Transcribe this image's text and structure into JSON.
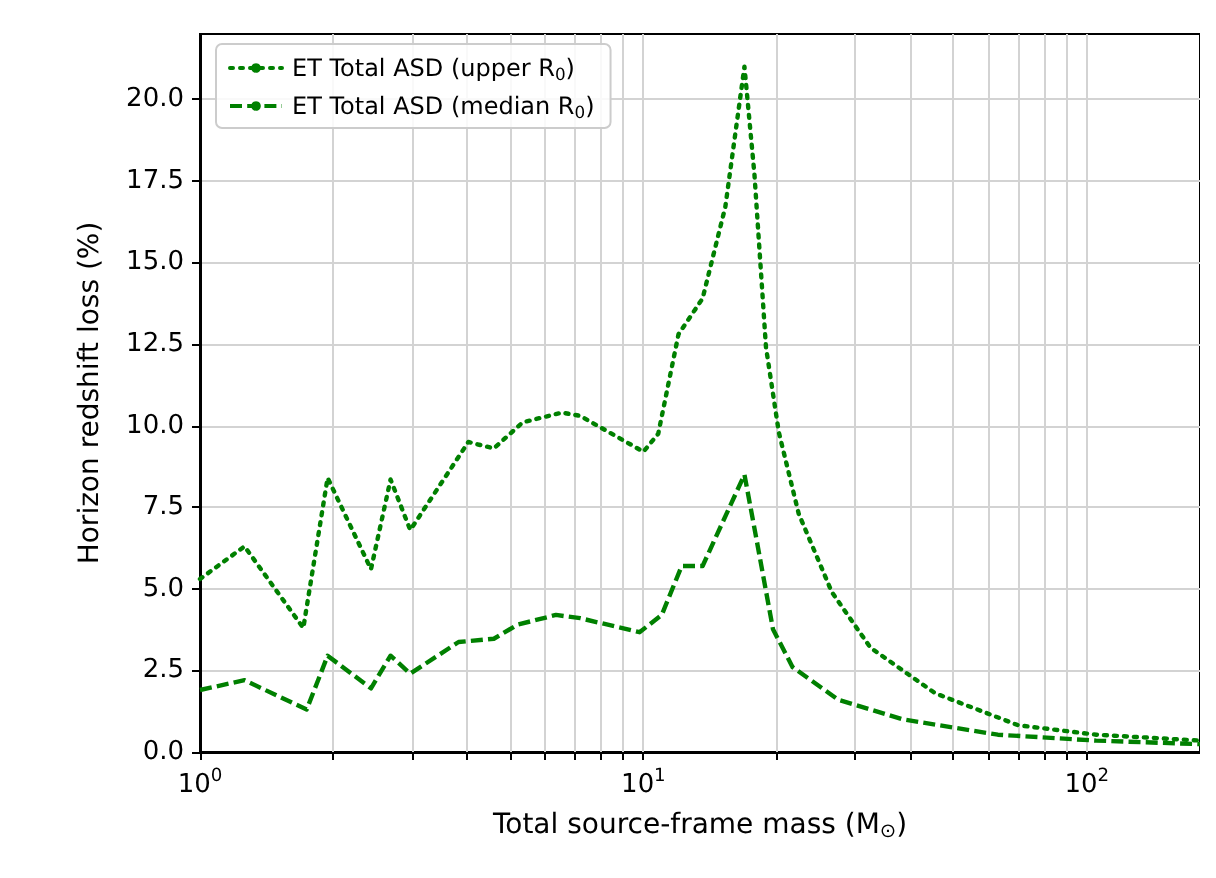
{
  "chart_data": {
    "type": "line",
    "xlabel": "Total source-frame mass (M$_{⊙}$)",
    "ylabel": "Horizon redshift loss (%)",
    "log": "x",
    "grid": true,
    "legend": "top left",
    "xlim": [
      1,
      180
    ],
    "xticks": [
      {
        "value": 1,
        "label": "10$^{0}$"
      },
      {
        "value": 2,
        "label": null
      },
      {
        "value": 3,
        "label": null
      },
      {
        "value": 4,
        "label": null
      },
      {
        "value": 5,
        "label": null
      },
      {
        "value": 6,
        "label": null
      },
      {
        "value": 7,
        "label": null
      },
      {
        "value": 8,
        "label": null
      },
      {
        "value": 9,
        "label": null
      },
      {
        "value": 10,
        "label": "10$^{1}$"
      },
      {
        "value": 20,
        "label": null
      },
      {
        "value": 30,
        "label": null
      },
      {
        "value": 40,
        "label": null
      },
      {
        "value": 50,
        "label": null
      },
      {
        "value": 60,
        "label": null
      },
      {
        "value": 70,
        "label": null
      },
      {
        "value": 80,
        "label": null
      },
      {
        "value": 90,
        "label": null
      },
      {
        "value": 100,
        "label": "10$^{2}$"
      }
    ],
    "ylim": [
      0,
      22
    ],
    "yticks": [
      {
        "value": 0,
        "label": "0.0"
      },
      {
        "value": 2.5,
        "label": "2.5"
      },
      {
        "value": 5,
        "label": "5.0"
      },
      {
        "value": 7.5,
        "label": "7.5"
      },
      {
        "value": 10,
        "label": "10.0"
      },
      {
        "value": 12.5,
        "label": "12.5"
      },
      {
        "value": 15,
        "label": "15.0"
      },
      {
        "value": 17.5,
        "label": "17.5"
      },
      {
        "value": 20,
        "label": "20.0"
      }
    ],
    "series": [
      {
        "name": "ET Total ASD (upper R$_{0}$)",
        "color": "#008000",
        "line_style": "dotted",
        "x": [
          1,
          1.26,
          1.71,
          1.94,
          2.43,
          2.69,
          2.98,
          4.03,
          4.6,
          5.34,
          6.55,
          7.2,
          10,
          10.8,
          12,
          13.6,
          15.3,
          16.9,
          17.8,
          18.9,
          20.2,
          22.4,
          26.6,
          32.5,
          45.5,
          70,
          105,
          180
        ],
        "values": [
          5.3,
          6.3,
          3.8,
          8.4,
          5.6,
          8.35,
          6.8,
          9.5,
          9.3,
          10.1,
          10.4,
          10.3,
          9.2,
          9.75,
          12.8,
          13.9,
          16.7,
          21.0,
          17.7,
          12.4,
          9.8,
          7.3,
          4.9,
          3.2,
          1.8,
          0.82,
          0.53,
          0.35
        ]
      },
      {
        "name": "ET Total ASD (median R$_{0}$)",
        "color": "#008000",
        "line_style": "dashed",
        "x": [
          1,
          1.26,
          1.74,
          1.94,
          2.43,
          2.69,
          2.98,
          3.83,
          4.6,
          5.2,
          6.35,
          7.2,
          9.8,
          11,
          12.2,
          13.6,
          16.9,
          18,
          19.6,
          21.7,
          27.5,
          38.5,
          63,
          105,
          180
        ],
        "values": [
          1.9,
          2.2,
          1.3,
          2.95,
          1.95,
          2.95,
          2.4,
          3.37,
          3.47,
          3.9,
          4.2,
          4.1,
          3.67,
          4.2,
          5.7,
          5.7,
          8.5,
          6.5,
          3.76,
          2.6,
          1.6,
          1.0,
          0.53,
          0.35,
          0.24
        ]
      }
    ]
  }
}
